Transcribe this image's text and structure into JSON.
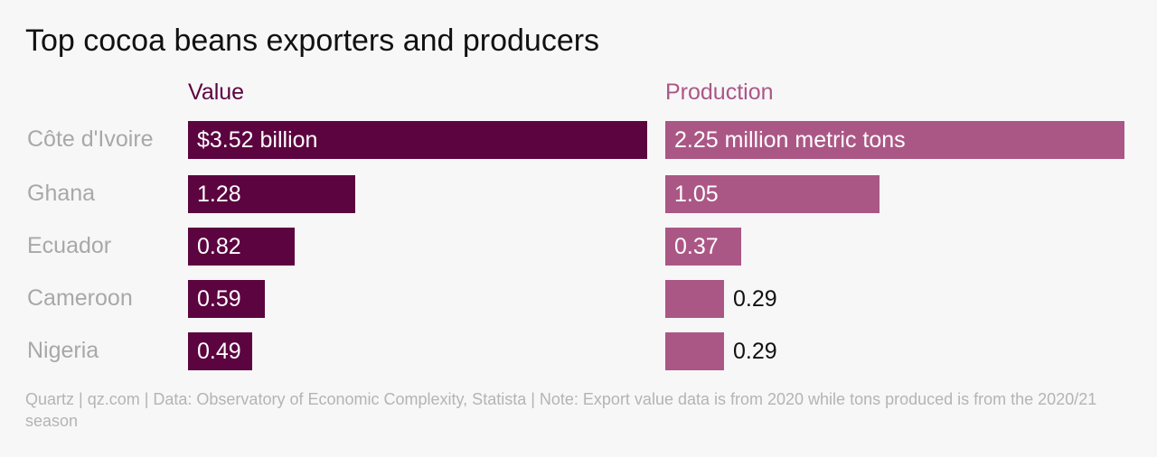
{
  "title": "Top cocoa beans exporters and producers",
  "footer": "Quartz | qz.com | Data: Observatory of Economic Complexity, Statista | Note: Export value data is from 2020 while tons produced is from the 2020/21 season",
  "colors": {
    "value": "#5c0440",
    "production": "#ab5786"
  },
  "chart_data": [
    {
      "type": "bar",
      "title": "Value",
      "orientation": "horizontal",
      "categories": [
        "Côte d'Ivoire",
        "Ghana",
        "Ecuador",
        "Cameroon",
        "Nigeria"
      ],
      "values": [
        3.52,
        1.28,
        0.82,
        0.59,
        0.49
      ],
      "labels": [
        "$3.52 billion",
        "1.28",
        "0.82",
        "0.59",
        "0.49"
      ],
      "xlim": [
        0,
        3.52
      ]
    },
    {
      "type": "bar",
      "title": "Production",
      "orientation": "horizontal",
      "categories": [
        "Côte d'Ivoire",
        "Ghana",
        "Ecuador",
        "Cameroon",
        "Nigeria"
      ],
      "values": [
        2.25,
        1.05,
        0.37,
        0.29,
        0.29
      ],
      "labels": [
        "2.25 million metric tons",
        "1.05",
        "0.37",
        "0.29",
        "0.29"
      ],
      "xlim": [
        0,
        2.25
      ]
    }
  ]
}
